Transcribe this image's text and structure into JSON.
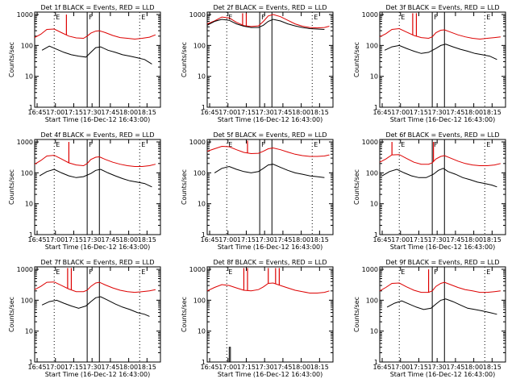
{
  "figure": {
    "start_time_label": "Start Time (16-Dec-12 16:43:00)",
    "ylabel": "Counts/sec",
    "x_ticks": [
      "16:45",
      "17:00",
      "17:15",
      "17:30",
      "17:45",
      "18:00",
      "18:15"
    ],
    "y_ticks": [
      "1",
      "10",
      "100",
      "1000"
    ],
    "marker_labels": [
      "E",
      "F",
      "E"
    ],
    "colors": {
      "events": "#000000",
      "lld": "#dd0000",
      "axes": "#000000"
    }
  },
  "chart_data": [
    {
      "type": "line",
      "title": "Det 1f BLACK = Events, RED = LLD",
      "xlabel": "Start Time (16-Dec-12 16:43:00)",
      "ylabel": "Counts/sec",
      "x_unit": "minutes after 16:43:00",
      "xlim": [
        0,
        103
      ],
      "ylim": [
        1,
        1200
      ],
      "yscale": "log",
      "dotted_x": [
        16,
        86
      ],
      "solid_x": [
        43,
        53
      ],
      "series": [
        {
          "name": "LLD",
          "x": [
            0,
            5,
            10,
            16,
            22,
            28,
            34,
            40,
            43,
            46,
            50,
            53,
            58,
            64,
            70,
            76,
            82,
            88,
            94,
            99
          ],
          "y": [
            180,
            230,
            330,
            340,
            260,
            200,
            175,
            170,
            200,
            250,
            290,
            300,
            260,
            210,
            180,
            170,
            160,
            170,
            185,
            220
          ],
          "spikes": [
            [
              26,
              1000
            ]
          ]
        },
        {
          "name": "Events",
          "x": [
            6,
            12,
            18,
            24,
            30,
            36,
            42,
            46,
            50,
            54,
            60,
            66,
            72,
            78,
            84,
            90,
            96
          ],
          "y": [
            70,
            95,
            75,
            60,
            50,
            45,
            42,
            60,
            85,
            90,
            70,
            60,
            50,
            45,
            40,
            35,
            25
          ]
        }
      ]
    },
    {
      "type": "line",
      "title": "Det 2f BLACK = Events, RED = LLD",
      "xlabel": "Start Time (16-Dec-12 16:43:00)",
      "ylabel": "Counts/sec",
      "x_unit": "minutes after 16:43:00",
      "xlim": [
        0,
        103
      ],
      "ylim": [
        1,
        1200
      ],
      "yscale": "log",
      "dotted_x": [
        16,
        86
      ],
      "solid_x": [
        43,
        53
      ],
      "series": [
        {
          "name": "LLD",
          "x": [
            0,
            6,
            12,
            18,
            24,
            30,
            36,
            42,
            46,
            50,
            54,
            60,
            66,
            72,
            78,
            84,
            90,
            96,
            100
          ],
          "y": [
            500,
            620,
            830,
            780,
            560,
            440,
            410,
            430,
            600,
            900,
            1000,
            850,
            650,
            500,
            420,
            380,
            370,
            380,
            420
          ],
          "spikes": [
            [
              29,
              1100
            ],
            [
              32,
              1100
            ]
          ]
        },
        {
          "name": "Events",
          "x": [
            0,
            6,
            12,
            18,
            24,
            30,
            36,
            42,
            46,
            50,
            54,
            60,
            66,
            72,
            78,
            84,
            90,
            96
          ],
          "y": [
            450,
            600,
            700,
            650,
            500,
            420,
            380,
            380,
            450,
            600,
            700,
            620,
            500,
            430,
            380,
            350,
            340,
            330
          ]
        }
      ]
    },
    {
      "type": "line",
      "title": "Det 3f BLACK = Events, RED = LLD",
      "xlabel": "Start Time (16-Dec-12 16:43:00)",
      "ylabel": "Counts/sec",
      "x_unit": "minutes after 16:43:00",
      "xlim": [
        0,
        103
      ],
      "ylim": [
        1,
        1200
      ],
      "yscale": "log",
      "dotted_x": [
        16,
        86
      ],
      "solid_x": [
        43,
        53
      ],
      "series": [
        {
          "name": "LLD",
          "x": [
            0,
            5,
            10,
            16,
            22,
            28,
            34,
            40,
            43,
            46,
            50,
            53,
            58,
            64,
            70,
            76,
            82,
            88,
            94,
            99
          ],
          "y": [
            190,
            240,
            330,
            350,
            270,
            210,
            180,
            170,
            190,
            260,
            310,
            320,
            270,
            220,
            190,
            170,
            160,
            170,
            180,
            190
          ],
          "spikes": [
            [
              27,
              1100
            ],
            [
              30,
              1100
            ]
          ]
        },
        {
          "name": "Events",
          "x": [
            4,
            10,
            16,
            22,
            28,
            34,
            40,
            46,
            50,
            54,
            60,
            66,
            72,
            78,
            84,
            90,
            96
          ],
          "y": [
            70,
            90,
            100,
            80,
            65,
            55,
            60,
            80,
            100,
            110,
            90,
            75,
            65,
            55,
            50,
            45,
            35
          ]
        }
      ]
    },
    {
      "type": "line",
      "title": "Det 4f BLACK = Events, RED = LLD",
      "xlabel": "Start Time (16-Dec-12 16:43:00)",
      "ylabel": "Counts/sec",
      "x_unit": "minutes after 16:43:00",
      "xlim": [
        0,
        103
      ],
      "ylim": [
        1,
        1200
      ],
      "yscale": "log",
      "dotted_x": [
        16,
        86
      ],
      "solid_x": [
        43,
        53
      ],
      "series": [
        {
          "name": "LLD",
          "x": [
            0,
            5,
            10,
            16,
            22,
            28,
            34,
            40,
            43,
            46,
            50,
            53,
            58,
            64,
            70,
            76,
            82,
            88,
            94,
            99
          ],
          "y": [
            190,
            250,
            350,
            370,
            280,
            210,
            180,
            170,
            200,
            270,
            320,
            330,
            270,
            220,
            190,
            170,
            160,
            160,
            170,
            190
          ],
          "spikes": [
            [
              28,
              1000
            ]
          ]
        },
        {
          "name": "Events",
          "x": [
            4,
            10,
            16,
            22,
            28,
            34,
            40,
            46,
            50,
            54,
            60,
            66,
            72,
            78,
            84,
            90,
            96
          ],
          "y": [
            80,
            110,
            130,
            100,
            80,
            70,
            75,
            95,
            120,
            130,
            100,
            80,
            65,
            55,
            50,
            45,
            35
          ]
        }
      ]
    },
    {
      "type": "line",
      "title": "Det 5f BLACK = Events, RED = LLD",
      "xlabel": "Start Time (16-Dec-12 16:43:00)",
      "ylabel": "Counts/sec",
      "x_unit": "minutes after 16:43:00",
      "xlim": [
        0,
        103
      ],
      "ylim": [
        1,
        1200
      ],
      "yscale": "log",
      "dotted_x": [
        16,
        86
      ],
      "solid_x": [
        43,
        53
      ],
      "series": [
        {
          "name": "LLD",
          "x": [
            0,
            6,
            12,
            18,
            24,
            30,
            36,
            42,
            46,
            50,
            54,
            60,
            66,
            72,
            78,
            84,
            90,
            96,
            100
          ],
          "y": [
            500,
            600,
            720,
            700,
            560,
            460,
            420,
            430,
            500,
            600,
            640,
            560,
            470,
            400,
            360,
            340,
            340,
            350,
            380
          ],
          "spikes": [
            [
              33,
              1100
            ]
          ]
        },
        {
          "name": "Events",
          "x": [
            6,
            12,
            18,
            24,
            30,
            36,
            42,
            46,
            50,
            54,
            60,
            66,
            72,
            78,
            84,
            90,
            96
          ],
          "y": [
            100,
            140,
            160,
            130,
            110,
            100,
            110,
            140,
            180,
            190,
            150,
            120,
            100,
            90,
            80,
            75,
            70
          ]
        }
      ]
    },
    {
      "type": "line",
      "title": "Det 6f BLACK = Events, RED = LLD",
      "xlabel": "Start Time (16-Dec-12 16:43:00)",
      "ylabel": "Counts/sec",
      "x_unit": "minutes after 16:43:00",
      "xlim": [
        0,
        103
      ],
      "ylim": [
        1,
        1200
      ],
      "yscale": "log",
      "dotted_x": [
        16,
        86
      ],
      "solid_x": [
        43,
        53
      ],
      "series": [
        {
          "name": "LLD",
          "x": [
            0,
            5,
            10,
            16,
            22,
            28,
            34,
            40,
            43,
            46,
            50,
            53,
            58,
            64,
            70,
            76,
            82,
            88,
            94,
            99
          ],
          "y": [
            220,
            280,
            380,
            390,
            290,
            220,
            190,
            190,
            210,
            280,
            340,
            360,
            300,
            240,
            200,
            180,
            170,
            170,
            180,
            200
          ],
          "spikes": [
            [
              10,
              1000
            ],
            [
              44,
              1000
            ]
          ]
        },
        {
          "name": "Events",
          "x": [
            2,
            8,
            14,
            20,
            26,
            32,
            38,
            44,
            48,
            52,
            56,
            62,
            68,
            74,
            80,
            86,
            92,
            96
          ],
          "y": [
            80,
            110,
            130,
            100,
            80,
            70,
            70,
            90,
            120,
            140,
            110,
            90,
            70,
            60,
            50,
            45,
            40,
            35
          ]
        }
      ]
    },
    {
      "type": "line",
      "title": "Det 7f BLACK = Events, RED = LLD",
      "xlabel": "Start Time (16-Dec-12 16:43:00)",
      "ylabel": "Counts/sec",
      "x_unit": "minutes after 16:43:00",
      "xlim": [
        0,
        103
      ],
      "ylim": [
        1,
        1200
      ],
      "yscale": "log",
      "dotted_x": [
        16,
        86
      ],
      "solid_x": [
        43,
        53
      ],
      "series": [
        {
          "name": "LLD",
          "x": [
            0,
            5,
            10,
            16,
            22,
            28,
            34,
            40,
            43,
            46,
            50,
            53,
            58,
            64,
            70,
            76,
            82,
            88,
            94,
            99
          ],
          "y": [
            220,
            280,
            380,
            390,
            300,
            230,
            190,
            190,
            210,
            280,
            360,
            380,
            310,
            250,
            210,
            190,
            180,
            190,
            200,
            220
          ],
          "spikes": [
            [
              27,
              1100
            ],
            [
              30,
              1100
            ]
          ]
        },
        {
          "name": "Events",
          "x": [
            6,
            12,
            18,
            24,
            30,
            36,
            42,
            46,
            50,
            54,
            60,
            66,
            72,
            78,
            84,
            90,
            94
          ],
          "y": [
            70,
            90,
            100,
            80,
            65,
            55,
            65,
            90,
            120,
            130,
            100,
            75,
            60,
            50,
            40,
            35,
            30
          ]
        }
      ]
    },
    {
      "type": "line",
      "title": "Det 8f BLACK = Events, RED = LLD",
      "xlabel": "Start Time (16-Dec-12 16:43:00)",
      "ylabel": "Counts/sec",
      "x_unit": "minutes after 16:43:00",
      "xlim": [
        0,
        103
      ],
      "ylim": [
        1,
        1200
      ],
      "yscale": "log",
      "dotted_x": [
        16
      ],
      "solid_x": [],
      "series": [
        {
          "name": "LLD",
          "x": [
            0,
            6,
            12,
            18,
            24,
            30,
            36,
            42,
            46,
            50,
            54,
            60,
            66,
            72,
            78,
            84,
            90,
            96,
            100
          ],
          "y": [
            200,
            260,
            320,
            300,
            250,
            210,
            200,
            220,
            270,
            350,
            360,
            300,
            250,
            210,
            190,
            170,
            170,
            180,
            200
          ],
          "spikes": [
            [
              30,
              1100
            ],
            [
              33,
              1100
            ],
            [
              50,
              1100
            ],
            [
              56,
              1100
            ],
            [
              59,
              1100
            ]
          ]
        },
        {
          "name": "Events",
          "x": [
            18,
            18,
            19,
            19
          ],
          "y": [
            1,
            3,
            3,
            1
          ]
        }
      ]
    },
    {
      "type": "line",
      "title": "Det 9f BLACK = Events, RED = LLD",
      "xlabel": "Start Time (16-Dec-12 16:43:00)",
      "ylabel": "Counts/sec",
      "x_unit": "minutes after 16:43:00",
      "xlim": [
        0,
        103
      ],
      "ylim": [
        1,
        1200
      ],
      "yscale": "log",
      "dotted_x": [
        16,
        86
      ],
      "solid_x": [
        43,
        53
      ],
      "series": [
        {
          "name": "LLD",
          "x": [
            0,
            5,
            10,
            16,
            22,
            28,
            34,
            40,
            43,
            46,
            50,
            53,
            58,
            64,
            70,
            76,
            82,
            88,
            94,
            99
          ],
          "y": [
            200,
            260,
            350,
            360,
            270,
            210,
            180,
            180,
            200,
            280,
            350,
            380,
            320,
            260,
            220,
            200,
            180,
            180,
            190,
            200
          ],
          "spikes": [
            [
              40,
              1000
            ]
          ]
        },
        {
          "name": "Events",
          "x": [
            6,
            12,
            18,
            24,
            30,
            36,
            42,
            46,
            50,
            54,
            60,
            66,
            72,
            78,
            84,
            90,
            96
          ],
          "y": [
            60,
            80,
            95,
            75,
            60,
            50,
            55,
            75,
            100,
            110,
            90,
            70,
            55,
            50,
            45,
            40,
            35
          ]
        }
      ]
    }
  ]
}
